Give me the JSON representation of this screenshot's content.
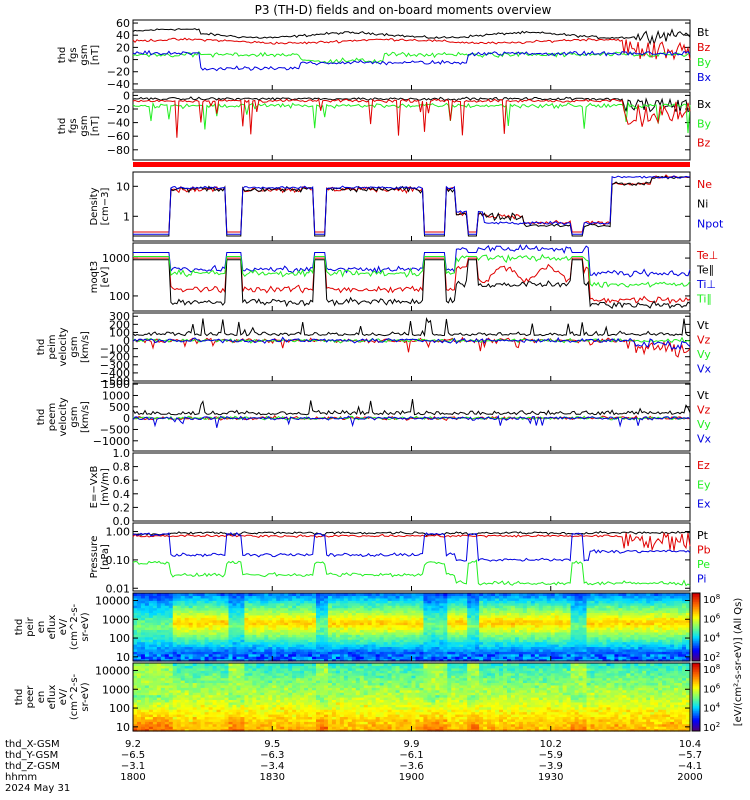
{
  "title": "P3 (TH-D) fields and on-board moments overview",
  "colors": {
    "black": "#000000",
    "red": "#e00000",
    "green": "#22ee22",
    "blue": "#0000e0"
  },
  "chart_data": [
    {
      "id": "p1",
      "type": "line",
      "ylabel_lines": [
        "thd",
        "fgs",
        "gsm",
        "[nT]"
      ],
      "ylim": [
        -50,
        65
      ],
      "yticks": [
        {
          "v": 60,
          "l": "60"
        },
        {
          "v": 40,
          "l": "40"
        },
        {
          "v": 20,
          "l": "20"
        },
        {
          "v": 0,
          "l": "0"
        },
        {
          "v": -20,
          "l": "−20"
        },
        {
          "v": -40,
          "l": "−40"
        }
      ],
      "legend": [
        {
          "l": "Bt",
          "c": "black"
        },
        {
          "l": "Bz",
          "c": "red"
        },
        {
          "l": "By",
          "c": "green"
        },
        {
          "l": "Bx",
          "c": "blue"
        }
      ]
    },
    {
      "id": "p2",
      "type": "line",
      "ylabel_lines": [
        "thd",
        "fgs",
        "gsm",
        "[nT]"
      ],
      "ylim": [
        -95,
        5
      ],
      "yticks": [
        {
          "v": 0,
          "l": "0"
        },
        {
          "v": -20,
          "l": "−20"
        },
        {
          "v": -40,
          "l": "−40"
        },
        {
          "v": -60,
          "l": "−60"
        },
        {
          "v": -80,
          "l": "−80"
        }
      ],
      "legend": [
        {
          "l": "Bx",
          "c": "black"
        },
        {
          "l": "By",
          "c": "green"
        },
        {
          "l": "Bz",
          "c": "red"
        }
      ]
    },
    {
      "id": "p3",
      "type": "line",
      "log": true,
      "ylabel_lines": [
        "Density",
        "[cm−3]"
      ],
      "ylim": [
        0.15,
        30
      ],
      "yticks": [
        {
          "v": 10,
          "l": "10"
        },
        {
          "v": 1,
          "l": "1"
        }
      ],
      "legend": [
        {
          "l": "Ne",
          "c": "red"
        },
        {
          "l": "Ni",
          "c": "black"
        },
        {
          "l": "Npot",
          "c": "blue"
        }
      ]
    },
    {
      "id": "p4",
      "type": "line",
      "log": true,
      "ylabel_lines": [
        "moqt3",
        "[eV]"
      ],
      "ylim": [
        40,
        2500
      ],
      "yticks": [
        {
          "v": 1000,
          "l": "1000"
        },
        {
          "v": 100,
          "l": "100"
        }
      ],
      "legend": [
        {
          "l": "Te⊥",
          "c": "red"
        },
        {
          "l": "Te∥",
          "c": "black"
        },
        {
          "l": "Ti⊥",
          "c": "blue"
        },
        {
          "l": "Ti∥",
          "c": "green"
        }
      ]
    },
    {
      "id": "p5",
      "type": "line",
      "ylabel_lines": [
        "thd",
        "peim",
        "velocity",
        "gsm",
        "[km/s]"
      ],
      "ylim": [
        -500,
        340
      ],
      "yticks": [
        {
          "v": 300,
          "l": "300"
        },
        {
          "v": 200,
          "l": "200"
        },
        {
          "v": 100,
          "l": "100"
        },
        {
          "v": 0,
          "l": "0"
        },
        {
          "v": -100,
          "l": "−100"
        },
        {
          "v": -200,
          "l": "−200"
        },
        {
          "v": -300,
          "l": "−300"
        },
        {
          "v": -400,
          "l": "−400"
        },
        {
          "v": -500,
          "l": "−500"
        }
      ],
      "legend": [
        {
          "l": "Vt",
          "c": "black"
        },
        {
          "l": "Vz",
          "c": "red"
        },
        {
          "l": "Vy",
          "c": "green"
        },
        {
          "l": "Vx",
          "c": "blue"
        }
      ]
    },
    {
      "id": "p6",
      "type": "line",
      "ylabel_lines": [
        "thd",
        "peem",
        "velocity",
        "gsm",
        "[km/s]"
      ],
      "ylim": [
        -1450,
        1550
      ],
      "yticks": [
        {
          "v": 1500,
          "l": "1500"
        },
        {
          "v": 1000,
          "l": "1000"
        },
        {
          "v": 500,
          "l": "500"
        },
        {
          "v": 0,
          "l": "0"
        },
        {
          "v": -500,
          "l": "−500"
        },
        {
          "v": -1000,
          "l": "−1000"
        }
      ],
      "legend": [
        {
          "l": "Vt",
          "c": "black"
        },
        {
          "l": "Vz",
          "c": "red"
        },
        {
          "l": "Vy",
          "c": "green"
        },
        {
          "l": "Vx",
          "c": "blue"
        }
      ]
    },
    {
      "id": "p7",
      "type": "line",
      "ylabel_lines": [
        "E=−VxB",
        "[mV/m]"
      ],
      "ylim": [
        0,
        1
      ],
      "yticks": [
        {
          "v": 1.0,
          "l": "1.0"
        },
        {
          "v": 0.8,
          "l": "0.8"
        },
        {
          "v": 0.6,
          "l": "0.6"
        },
        {
          "v": 0.4,
          "l": "0.4"
        },
        {
          "v": 0.2,
          "l": "0.2"
        },
        {
          "v": 0.0,
          "l": "0.0"
        }
      ],
      "legend": [
        {
          "l": "Ez",
          "c": "red"
        },
        {
          "l": "Ey",
          "c": "green"
        },
        {
          "l": "Ex",
          "c": "blue"
        }
      ]
    },
    {
      "id": "p8",
      "type": "line",
      "log": true,
      "ylabel_lines": [
        "Pressure",
        "[nPa]"
      ],
      "ylim": [
        0.008,
        2
      ],
      "yticks": [
        {
          "v": 1,
          "l": "1.00"
        },
        {
          "v": 0.1,
          "l": "0.10"
        },
        {
          "v": 0.01,
          "l": "0.01"
        }
      ],
      "legend": [
        {
          "l": "Pt",
          "c": "black"
        },
        {
          "l": "Pb",
          "c": "red"
        },
        {
          "l": "Pe",
          "c": "green"
        },
        {
          "l": "Pi",
          "c": "blue"
        }
      ]
    },
    {
      "id": "p9",
      "type": "heatmap",
      "log": true,
      "ylabel_lines": [
        "thd",
        "peir",
        "en",
        "eflux",
        "eV/",
        "(cm^2-s-",
        "sr-eV)"
      ],
      "ylim": [
        6,
        25000
      ],
      "yticks": [
        {
          "v": 10000,
          "l": "10000"
        },
        {
          "v": 1000,
          "l": "1000"
        },
        {
          "v": 100,
          "l": "100"
        },
        {
          "v": 10,
          "l": "10"
        }
      ]
    },
    {
      "id": "p10",
      "type": "heatmap",
      "log": true,
      "ylabel_lines": [
        "thd",
        "peer",
        "en",
        "eflux",
        "eV/",
        "(cm^2-s-",
        "sr-eV)"
      ],
      "ylim": [
        6,
        25000
      ],
      "yticks": [
        {
          "v": 10000,
          "l": "10000"
        },
        {
          "v": 1000,
          "l": "1000"
        },
        {
          "v": 100,
          "l": "100"
        },
        {
          "v": 10,
          "l": "10"
        }
      ]
    }
  ],
  "colorbars": [
    {
      "ticks": [
        {
          "e": "8"
        },
        {
          "e": "6"
        },
        {
          "e": "4"
        },
        {
          "e": "2"
        }
      ],
      "base": "10"
    },
    {
      "ticks": [
        {
          "e": "8"
        },
        {
          "e": "6"
        },
        {
          "e": "4"
        },
        {
          "e": "2"
        }
      ],
      "base": "10"
    }
  ],
  "colorbar_label": "[eV/(cm²-s-sr-eV)] (All Qs)",
  "xaxis": {
    "row_labels": [
      "thd_X-GSM",
      "thd_Y-GSM",
      "thd_Z-GSM",
      "hhmm",
      "2024 May 31"
    ],
    "columns": [
      {
        "vals": [
          "9.2",
          "−6.5",
          "−3.1",
          "1800"
        ]
      },
      {
        "vals": [
          "9.5",
          "−6.3",
          "−3.4",
          "1830"
        ]
      },
      {
        "vals": [
          "9.9",
          "−6.1",
          "−3.6",
          "1900"
        ]
      },
      {
        "vals": [
          "10.2",
          "−5.9",
          "−3.9",
          "1930"
        ]
      },
      {
        "vals": [
          "10.4",
          "−5.7",
          "−4.1",
          "2000"
        ]
      }
    ]
  }
}
